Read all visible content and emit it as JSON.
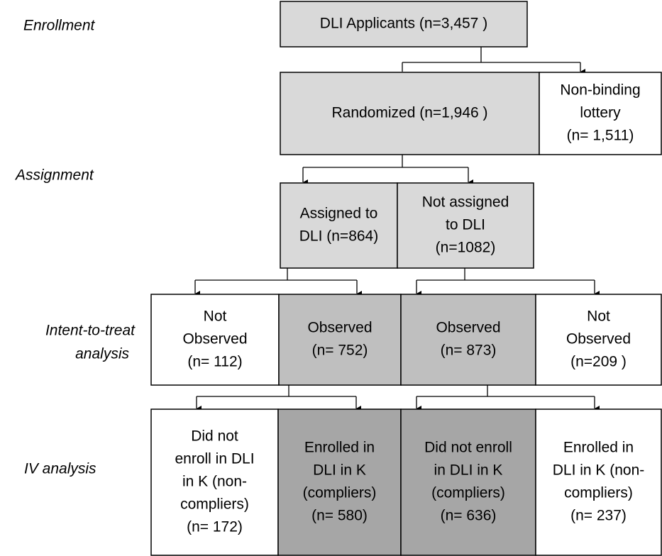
{
  "stages": [
    "Enrollment",
    "Assignment",
    [
      "Intent-to-treat",
      "analysis"
    ],
    "IV analysis"
  ],
  "nodes": [
    {
      "lines": [
        "DLI Applicants (n=3,457 )"
      ]
    },
    {
      "lines": [
        "Randomized (n=1,946 )"
      ]
    },
    {
      "lines": [
        "Non-binding",
        "lottery",
        "(n= 1,511)"
      ]
    },
    {
      "lines": [
        "Assigned to",
        "DLI (n=864)"
      ]
    },
    {
      "lines": [
        "Not assigned",
        "to DLI",
        "(n=1082)"
      ]
    },
    {
      "lines": [
        "Not",
        "Observed",
        "(n= 112)"
      ]
    },
    {
      "lines": [
        "Observed",
        "(n= 752)"
      ]
    },
    {
      "lines": [
        "Observed",
        "(n= 873)"
      ]
    },
    {
      "lines": [
        "Not",
        "Observed",
        "(n=209 )"
      ]
    },
    {
      "lines": [
        "Did not",
        "enroll in DLI",
        "in K (non-",
        "compliers)",
        "(n= 172)"
      ]
    },
    {
      "lines": [
        "Enrolled in",
        "DLI in K",
        "(compliers)",
        "(n= 580)"
      ]
    },
    {
      "lines": [
        "Did not enroll",
        "in DLI in K",
        "(compliers)",
        "(n= 636)"
      ]
    },
    {
      "lines": [
        "Enrolled in",
        "DLI in K (non-",
        "compliers)",
        "(n= 237)"
      ]
    }
  ]
}
